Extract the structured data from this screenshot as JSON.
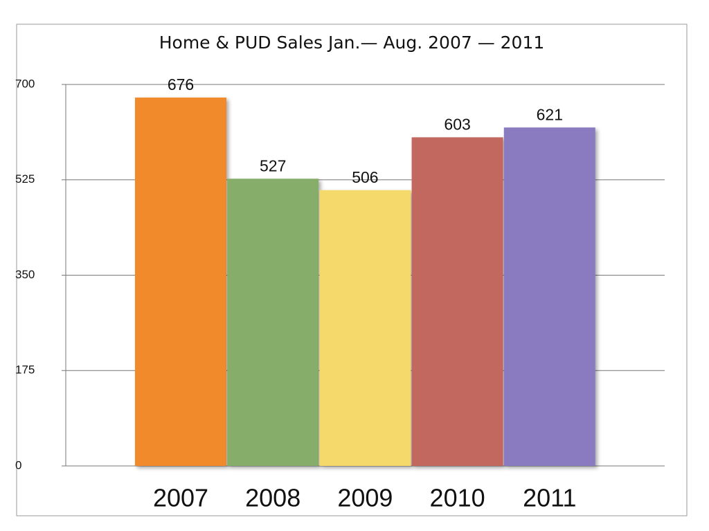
{
  "chart_data": {
    "type": "bar",
    "title": "Home & PUD Sales Jan.— Aug. 2007 — 2011",
    "categories": [
      "2007",
      "2008",
      "2009",
      "2010",
      "2011"
    ],
    "values": [
      676,
      527,
      506,
      603,
      621
    ],
    "colors": [
      "#f08a2a",
      "#86ad6a",
      "#f5d96a",
      "#c2675e",
      "#8a7ac0"
    ],
    "ylim": [
      0,
      700
    ],
    "yticks": [
      0,
      175,
      350,
      525,
      700
    ],
    "grid": true
  }
}
